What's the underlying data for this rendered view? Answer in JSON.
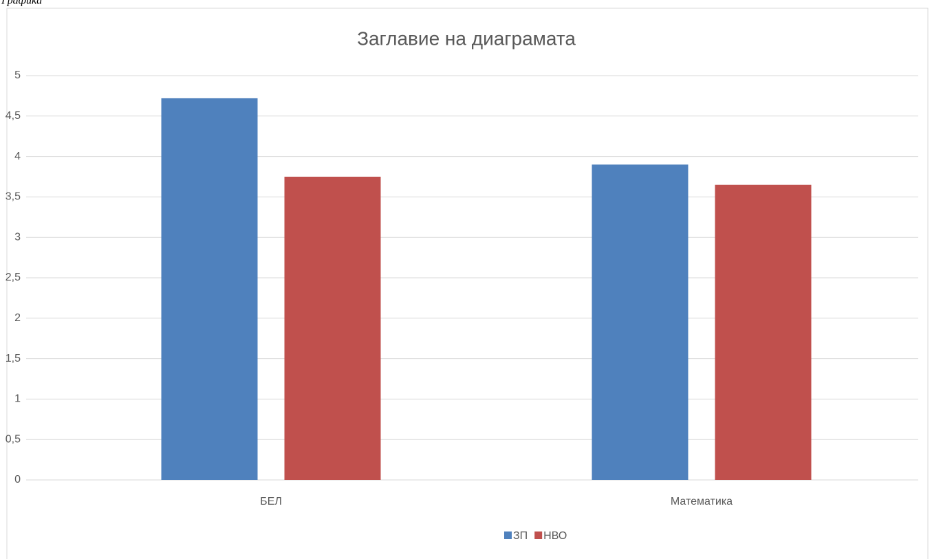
{
  "caption": "Графика",
  "chart_data": {
    "type": "bar",
    "title": "Заглавие на диаграмата",
    "categories": [
      "БЕЛ",
      "Математика"
    ],
    "series": [
      {
        "name": "ЗП",
        "color": "#4f81bd",
        "values": [
          4.72,
          3.9
        ]
      },
      {
        "name": "НВО",
        "color": "#c0504d",
        "values": [
          3.75,
          3.65
        ]
      }
    ],
    "ylim": [
      0,
      5
    ],
    "yticks": [
      0,
      {
        "value": 0.5,
        "label": "0,5"
      },
      1,
      {
        "value": 1.5,
        "label": "1,5"
      },
      2,
      {
        "value": 2.5,
        "label": "2,5"
      },
      3,
      {
        "value": 3.5,
        "label": "3,5"
      },
      4,
      {
        "value": 4.5,
        "label": "4,5"
      },
      5
    ],
    "grid": true,
    "legend": "bottom"
  }
}
